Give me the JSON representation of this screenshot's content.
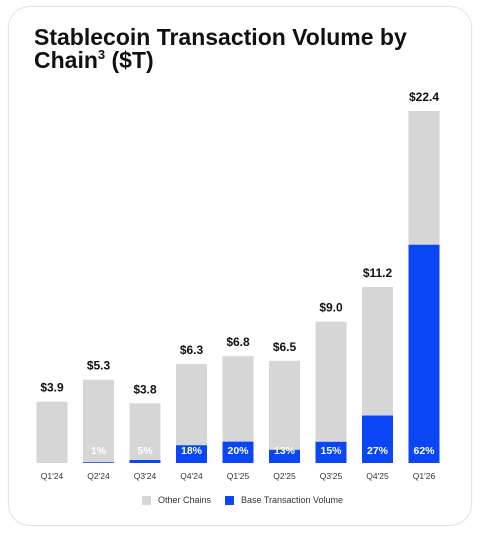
{
  "chart_data": {
    "type": "bar",
    "title_main": "Stablecoin Transaction Volume by Chain",
    "title_sup": "3",
    "title_unit": "($T)",
    "categories": [
      "Q1'24",
      "Q2'24",
      "Q3'24",
      "Q4'24",
      "Q1'25",
      "Q2'25",
      "Q3'25",
      "Q4'25",
      "Q1'26"
    ],
    "totals": [
      3.9,
      5.3,
      3.8,
      6.3,
      6.8,
      6.5,
      9.0,
      11.2,
      22.4
    ],
    "total_labels": [
      "$3.9",
      "$5.3",
      "$3.8",
      "$6.3",
      "$6.8",
      "$6.5",
      "$9.0",
      "$11.2",
      "$22.4"
    ],
    "series": [
      {
        "name": "Other Chains",
        "values": [
          3.9,
          5.25,
          3.61,
          5.17,
          5.44,
          5.66,
          7.65,
          8.18,
          8.51
        ],
        "color": "#d6d6d6"
      },
      {
        "name": "Base Transaction Volume",
        "values": [
          0.0,
          0.05,
          0.19,
          1.13,
          1.36,
          0.84,
          1.35,
          3.02,
          13.89
        ],
        "color": "#0a46f5"
      }
    ],
    "base_share_labels": [
      "",
      "1%",
      "5%",
      "18%",
      "20%",
      "13%",
      "15%",
      "27%",
      "62%"
    ],
    "ylim": [
      0,
      22.4
    ]
  },
  "legend": {
    "other": "Other Chains",
    "base": "Base Transaction Volume"
  }
}
